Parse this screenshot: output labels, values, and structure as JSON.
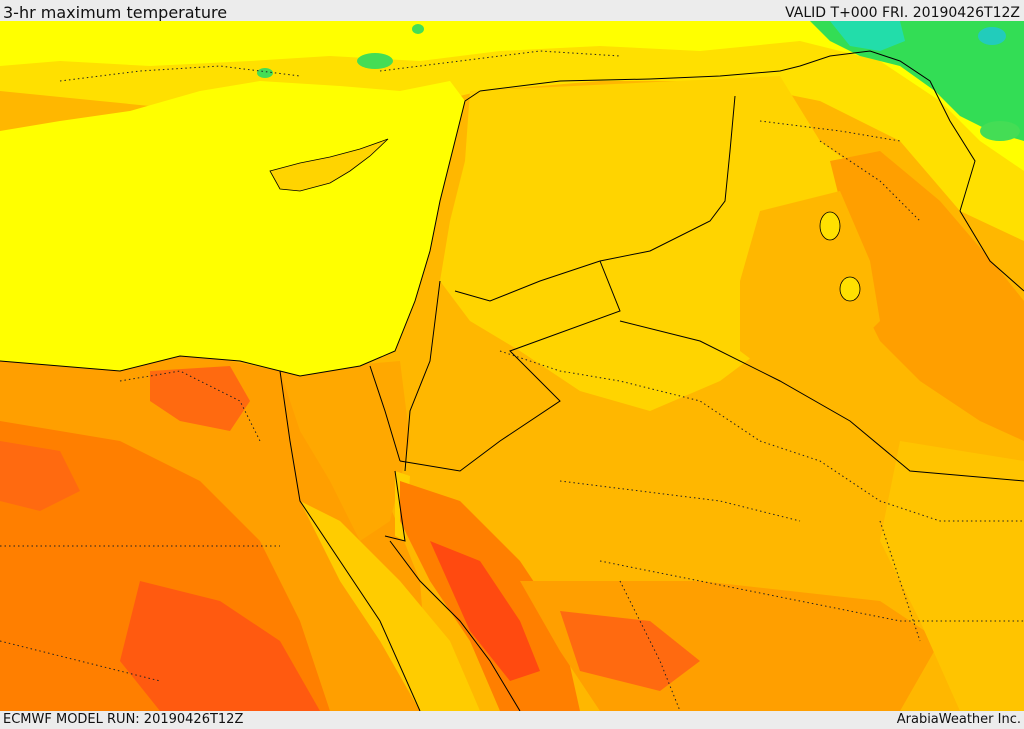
{
  "header": {
    "title": "3-hr maximum temperature",
    "valid_time": "VALID T+000 FRI. 20190426T12Z"
  },
  "footer": {
    "model_run": "ECMWF MODEL RUN: 20190426T12Z",
    "credit": "ArabiaWeather Inc."
  },
  "palette": {
    "sea": "#ffff00",
    "cool_green": "#33dd55",
    "teal": "#22ddaa",
    "light_yellow": "#ffee00",
    "gold": "#ffd400",
    "light_orange": "#ffb700",
    "orange": "#ff9f00",
    "dark_orange": "#ff7f00",
    "red_orange": "#ff5a10",
    "red": "#ff3a10",
    "border_line": "#000000"
  }
}
